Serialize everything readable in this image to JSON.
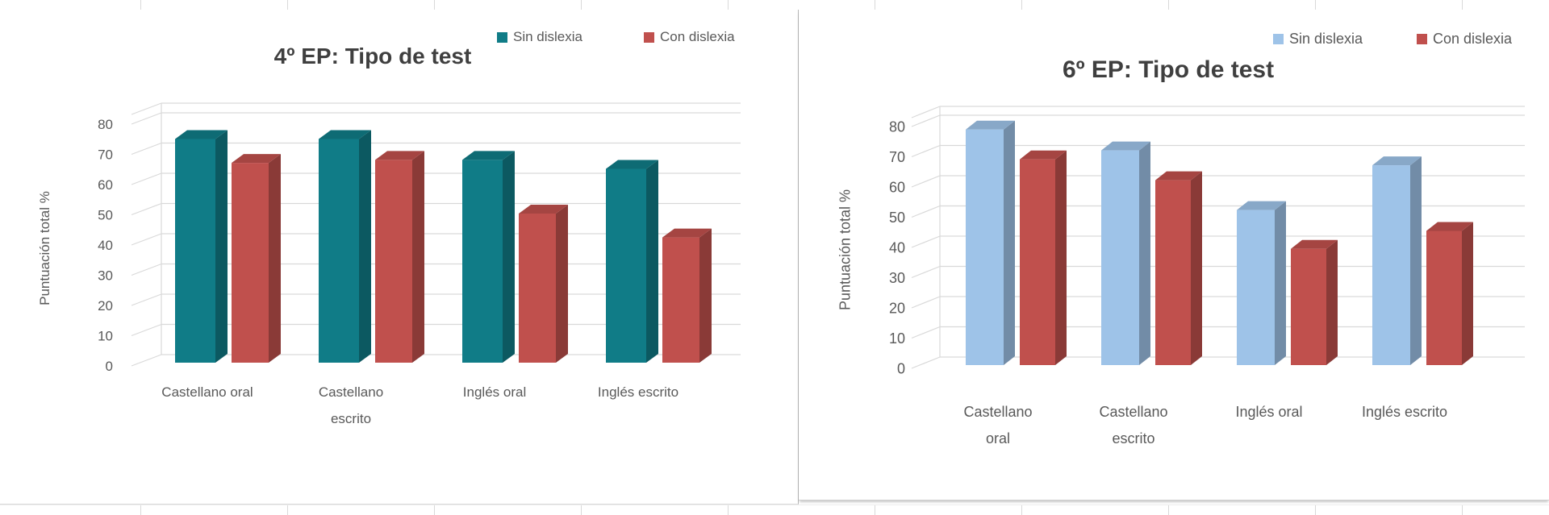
{
  "app": {
    "kind": "spreadsheet-with-embedded-charts",
    "background_color": "#FFFFFF",
    "gridline_color": "#D9D9D9",
    "chart_border_color": "#B8B8B8"
  },
  "chart_data": [
    {
      "type": "bar",
      "style": "3d-clustered-column",
      "title": "4º EP: Tipo de test",
      "categories": [
        "Castellano oral",
        "Castellano escrito",
        "Inglés oral",
        "Inglés escrito"
      ],
      "series": [
        {
          "name": "Sin dislexia",
          "color": "#107C87",
          "values": [
            75,
            75,
            68,
            65
          ]
        },
        {
          "name": "Con dislexia",
          "color": "#C0504D",
          "values": [
            67,
            68,
            50,
            42
          ]
        }
      ],
      "xlabel": "",
      "ylabel": "Puntuación total %",
      "ylim": [
        0,
        80
      ],
      "ytick_step": 10,
      "grid": true,
      "legend_position": "top-right",
      "title_color": "#3F3F3F",
      "axis_text_color": "#595959"
    },
    {
      "type": "bar",
      "style": "3d-clustered-column",
      "title": "6º EP: Tipo de test",
      "categories": [
        "Castellano oral",
        "Castellano escrito",
        "Inglés oral",
        "Inglés escrito"
      ],
      "series": [
        {
          "name": "Sin dislexia",
          "color": "#9EC3E8",
          "values": [
            79,
            72,
            52,
            67
          ]
        },
        {
          "name": "Con dislexia",
          "color": "#C0504D",
          "values": [
            69,
            62,
            39,
            45
          ]
        }
      ],
      "xlabel": "",
      "ylabel": "Puntuación total %",
      "ylim": [
        0,
        80
      ],
      "ytick_step": 10,
      "grid": true,
      "legend_position": "top-right",
      "title_color": "#3F3F3F",
      "axis_text_color": "#595959"
    }
  ]
}
